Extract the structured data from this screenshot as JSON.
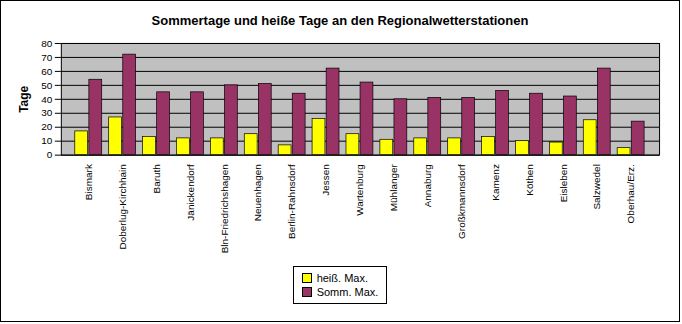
{
  "chart_data": {
    "type": "bar",
    "title": "Sommertage und heiße Tage an den Regionalwetterstationen",
    "y_label": "Tage",
    "categories": [
      "Bismark",
      "Doberlug-Kirchhain",
      "Baruth",
      "Jänickendorf",
      "Bln-Friedrichshagen",
      "Neuenhagen",
      "Berlin-Rahnsdorf",
      "Jessen",
      "Wartenburg",
      "Mühlanger",
      "Annaburg",
      "Großkmannsdorf",
      "Kamenz",
      "Köthen",
      "Eisleben",
      "Salzwedel",
      "Oberhau/Erz."
    ],
    "series": [
      {
        "name": "heiß. Max.",
        "color": "#ffff00",
        "values": [
          17,
          27,
          13,
          12,
          12,
          15,
          7,
          26,
          15,
          11,
          12,
          12,
          13,
          10,
          9,
          25,
          5
        ]
      },
      {
        "name": "Somm. Max.",
        "color": "#993366",
        "values": [
          54,
          72,
          45,
          45,
          50,
          51,
          44,
          62,
          52,
          40,
          41,
          41,
          46,
          44,
          42,
          62,
          24
        ]
      }
    ],
    "ylim": [
      0,
      80
    ],
    "yticks": [
      0,
      10,
      20,
      30,
      40,
      50,
      60,
      70,
      80
    ],
    "grid": true,
    "legend": "bottom"
  }
}
